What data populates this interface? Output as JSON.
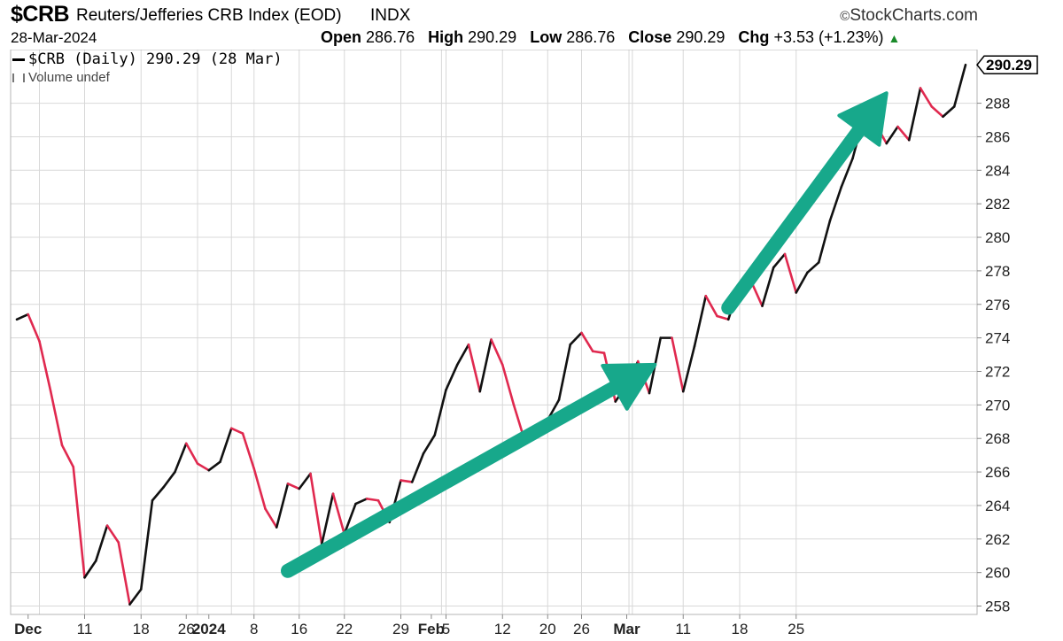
{
  "header": {
    "symbol": "$CRB",
    "name": "Reuters/Jefferies CRB Index (EOD)",
    "exchange": "INDX",
    "brand": "StockCharts.com",
    "date": "28-Mar-2024",
    "open_label": "Open",
    "open": "286.76",
    "high_label": "High",
    "high": "290.29",
    "low_label": "Low",
    "low": "286.76",
    "close_label": "Close",
    "close": "290.29",
    "chg_label": "Chg",
    "chg": "+3.53 (+1.23%)"
  },
  "legend": {
    "series": "$CRB (Daily) 290.29 (28 Mar)",
    "volume": "Volume undef"
  },
  "colors": {
    "up": "#111111",
    "down": "#e0294f",
    "arrow": "#17a88b",
    "grid": "#d8d8d8"
  },
  "chart_data": {
    "type": "line",
    "title": "Reuters/Jefferies CRB Index (EOD)",
    "xlabel": "",
    "ylabel": "",
    "ylim": [
      257.5,
      291.2
    ],
    "y_ticks": [
      258,
      260,
      262,
      264,
      266,
      268,
      270,
      272,
      274,
      276,
      278,
      280,
      282,
      284,
      286,
      288
    ],
    "last_value_label": "290.29",
    "x_tick_labels": [
      {
        "label": "Dec",
        "bold": true,
        "i": 1
      },
      {
        "label": "11",
        "bold": false,
        "i": 6
      },
      {
        "label": "18",
        "bold": false,
        "i": 11
      },
      {
        "label": "26",
        "bold": false,
        "i": 15
      },
      {
        "label": "2024",
        "bold": true,
        "i": 17
      },
      {
        "label": "8",
        "bold": false,
        "i": 21
      },
      {
        "label": "16",
        "bold": false,
        "i": 25
      },
      {
        "label": "22",
        "bold": false,
        "i": 29
      },
      {
        "label": "29",
        "bold": false,
        "i": 34
      },
      {
        "label": "Feb",
        "bold": true,
        "i": 36.7
      },
      {
        "label": "5",
        "bold": false,
        "i": 38
      },
      {
        "label": "12",
        "bold": false,
        "i": 43
      },
      {
        "label": "20",
        "bold": false,
        "i": 47
      },
      {
        "label": "26",
        "bold": false,
        "i": 50
      },
      {
        "label": "Mar",
        "bold": true,
        "i": 54
      },
      {
        "label": "11",
        "bold": false,
        "i": 59
      },
      {
        "label": "18",
        "bold": false,
        "i": 64
      },
      {
        "label": "25",
        "bold": false,
        "i": 69
      }
    ],
    "vgrid_i": [
      2,
      6,
      11,
      16,
      19,
      21,
      25,
      29,
      34,
      37.6,
      38,
      43,
      47,
      50,
      54.2,
      54.5,
      59,
      64,
      69
    ],
    "series": [
      {
        "name": "$CRB (Daily)",
        "values": [
          275.1,
          275.4,
          273.8,
          270.8,
          267.6,
          266.3,
          259.7,
          260.7,
          262.8,
          261.8,
          258.1,
          259.0,
          264.3,
          265.1,
          266.0,
          267.7,
          266.5,
          266.1,
          266.6,
          268.6,
          268.3,
          266.2,
          263.8,
          262.7,
          265.3,
          265.0,
          265.9,
          261.7,
          264.7,
          262.3,
          264.1,
          264.4,
          264.3,
          263.0,
          265.5,
          265.4,
          267.1,
          268.2,
          270.9,
          272.4,
          273.6,
          270.8,
          273.9,
          272.4,
          270.0,
          267.8,
          268.2,
          269.1,
          270.3,
          273.6,
          274.3,
          273.2,
          273.1,
          270.2,
          271.2,
          272.6,
          270.7,
          274.0,
          274.0,
          270.8,
          273.5,
          276.5,
          275.3,
          275.1,
          277.2,
          277.4,
          275.9,
          278.2,
          279.0,
          276.7,
          277.9,
          278.5,
          281.0,
          283.0,
          284.7,
          287.2,
          286.8,
          285.6,
          286.6,
          285.8,
          288.9,
          287.8,
          287.2,
          287.8,
          290.29
        ]
      }
    ],
    "annotations": [
      {
        "type": "arrow",
        "from": [
          24,
          260.1
        ],
        "to": [
          56.5,
          272.4
        ]
      },
      {
        "type": "arrow",
        "from": [
          63,
          275.8
        ],
        "to": [
          77,
          288.6
        ]
      }
    ]
  }
}
